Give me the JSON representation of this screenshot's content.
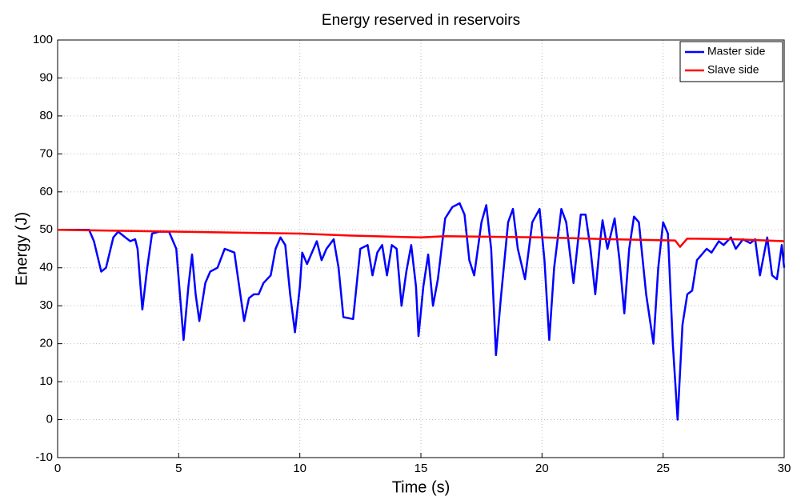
{
  "chart_data": {
    "type": "line",
    "title": "Energy reserved in reservoirs",
    "xlabel": "Time (s)",
    "ylabel": "Energy (J)",
    "xlim": [
      0,
      30
    ],
    "xticks": [
      0,
      5,
      10,
      15,
      20,
      25,
      30
    ],
    "ylim": [
      -10,
      100
    ],
    "yticks": [
      -10,
      0,
      10,
      20,
      30,
      40,
      50,
      60,
      70,
      80,
      90,
      100
    ],
    "grid": true,
    "legend": "upper right",
    "series": [
      {
        "name": "Master side",
        "color": "#0000ff",
        "x": [
          0,
          1.3,
          1.5,
          1.8,
          2.0,
          2.3,
          2.5,
          2.8,
          3.0,
          3.2,
          3.3,
          3.5,
          3.7,
          3.9,
          4.2,
          4.6,
          4.9,
          5.2,
          5.4,
          5.55,
          5.7,
          5.85,
          6.1,
          6.3,
          6.6,
          6.9,
          7.3,
          7.5,
          7.7,
          7.9,
          8.1,
          8.3,
          8.5,
          8.8,
          9.0,
          9.2,
          9.4,
          9.6,
          9.8,
          10.0,
          10.1,
          10.3,
          10.5,
          10.7,
          10.9,
          11.1,
          11.4,
          11.6,
          11.8,
          12.2,
          12.5,
          12.8,
          13.0,
          13.2,
          13.4,
          13.6,
          13.8,
          14.0,
          14.2,
          14.4,
          14.6,
          14.8,
          14.9,
          15.1,
          15.3,
          15.5,
          15.7,
          16.0,
          16.3,
          16.6,
          16.8,
          17.0,
          17.2,
          17.5,
          17.7,
          17.9,
          18.1,
          18.3,
          18.6,
          18.8,
          19.0,
          19.3,
          19.6,
          19.9,
          20.1,
          20.3,
          20.5,
          20.8,
          21.0,
          21.3,
          21.6,
          21.8,
          22.0,
          22.2,
          22.4,
          22.5,
          22.7,
          23.0,
          23.2,
          23.4,
          23.6,
          23.8,
          24.0,
          24.3,
          24.6,
          24.8,
          25.0,
          25.2,
          25.4,
          25.6,
          25.8,
          26.0,
          26.2,
          26.4,
          26.8,
          27.0,
          27.3,
          27.5,
          27.8,
          28.0,
          28.3,
          28.6,
          28.8,
          29.0,
          29.3,
          29.5,
          29.7,
          29.9,
          30.0
        ],
        "values": [
          50,
          50,
          47,
          39,
          40,
          48,
          49.5,
          48,
          47,
          47.5,
          45,
          29,
          40,
          49,
          49.5,
          49.5,
          45,
          21,
          35,
          43.5,
          33,
          26,
          36,
          39,
          40,
          45,
          44,
          35,
          26,
          32,
          33,
          33,
          36,
          38,
          45,
          48,
          46,
          33,
          23,
          35,
          44,
          41,
          44,
          47,
          42,
          45,
          47.5,
          40,
          27,
          26.5,
          45,
          46,
          38,
          44,
          46,
          38,
          46,
          45,
          30,
          39,
          46,
          35,
          22,
          35,
          43.5,
          30,
          37,
          53,
          56,
          57,
          54,
          42,
          38,
          52,
          56.5,
          45,
          17,
          32,
          52,
          55.5,
          45,
          37,
          52,
          55.5,
          42,
          21,
          40,
          55.5,
          52,
          36,
          54,
          54,
          45,
          33,
          47,
          52.5,
          45,
          53,
          42,
          28,
          45,
          53.5,
          52,
          33,
          20,
          40,
          52,
          49,
          20,
          0,
          25,
          33,
          34,
          42,
          45,
          44,
          47,
          46,
          48,
          45,
          47.5,
          46.5,
          47.5,
          38,
          48,
          38,
          37,
          46,
          40
        ]
      },
      {
        "name": "Slave side",
        "color": "#ff0000",
        "x": [
          0,
          5,
          10,
          12,
          15,
          16,
          20,
          23,
          25.5,
          25.7,
          26,
          28,
          30
        ],
        "values": [
          50,
          49.5,
          49,
          48.5,
          48,
          48.3,
          48,
          47.5,
          47.2,
          45.5,
          47.7,
          47.5,
          47
        ]
      }
    ]
  }
}
